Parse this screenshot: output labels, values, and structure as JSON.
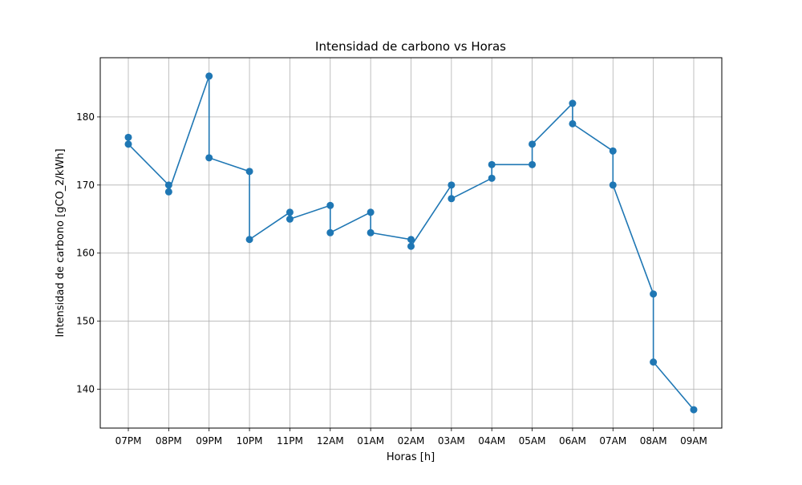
{
  "chart_data": {
    "type": "line",
    "title": "Intensidad de carbono vs Horas",
    "xlabel": "Horas [h]",
    "ylabel": "Intensidad de carbono [gCO_2/kWh]",
    "categories": [
      "07PM",
      "08PM",
      "09PM",
      "10PM",
      "11PM",
      "12AM",
      "01AM",
      "02AM",
      "03AM",
      "04AM",
      "05AM",
      "06AM",
      "07AM",
      "08AM",
      "09AM"
    ],
    "yticks": [
      140,
      150,
      160,
      170,
      180
    ],
    "ylim": [
      134.3,
      188.7
    ],
    "grid": true,
    "marker": "circle",
    "series": [
      {
        "color": "#1f77b4",
        "points": [
          [
            "07PM",
            177
          ],
          [
            "07PM",
            176
          ],
          [
            "08PM",
            170
          ],
          [
            "08PM",
            169
          ],
          [
            "09PM",
            186
          ],
          [
            "09PM",
            174
          ],
          [
            "10PM",
            172
          ],
          [
            "10PM",
            162
          ],
          [
            "11PM",
            166
          ],
          [
            "11PM",
            165
          ],
          [
            "12AM",
            167
          ],
          [
            "12AM",
            163
          ],
          [
            "01AM",
            166
          ],
          [
            "01AM",
            163
          ],
          [
            "02AM",
            162
          ],
          [
            "02AM",
            161
          ],
          [
            "03AM",
            170
          ],
          [
            "03AM",
            168
          ],
          [
            "04AM",
            171
          ],
          [
            "04AM",
            173
          ],
          [
            "05AM",
            173
          ],
          [
            "05AM",
            176
          ],
          [
            "06AM",
            182
          ],
          [
            "06AM",
            179
          ],
          [
            "07AM",
            175
          ],
          [
            "07AM",
            170
          ],
          [
            "08AM",
            154
          ],
          [
            "08AM",
            144
          ],
          [
            "09AM",
            137
          ]
        ]
      }
    ]
  }
}
